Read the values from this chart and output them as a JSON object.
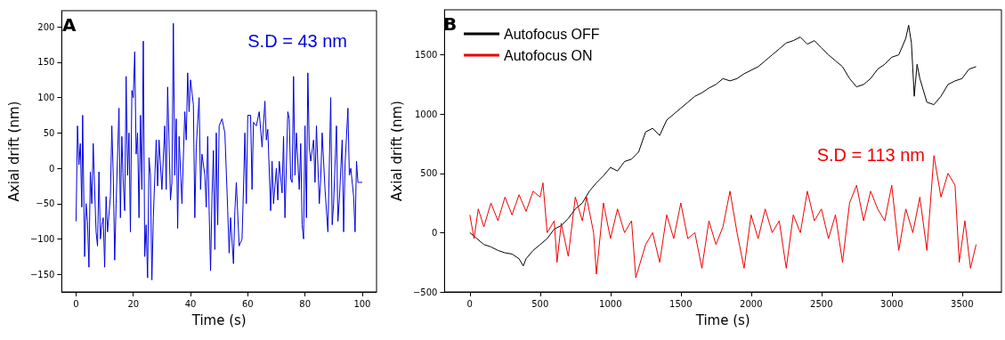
{
  "chart_data": [
    {
      "type": "line",
      "title": "A",
      "xlabel": "Time (s)",
      "ylabel": "Axial drift (nm)",
      "annotations": [
        "S.D = 43 nm"
      ],
      "xlim": [
        -5,
        105
      ],
      "xticks": [
        0,
        20,
        40,
        60,
        80,
        100
      ],
      "ylim": [
        -175,
        223
      ],
      "yticks": [
        -150,
        -100,
        -50,
        0,
        50,
        100,
        150,
        200
      ],
      "grid": false,
      "legend": false,
      "marker": "none",
      "line_style": "solid",
      "series": [
        {
          "color": "#0000dd",
          "x": [
            0,
            0.5,
            1,
            1.5,
            2,
            2.3,
            3,
            3.5,
            4,
            4.5,
            5,
            5.5,
            6,
            6.5,
            7,
            7.5,
            8,
            8.5,
            9,
            9.5,
            10,
            10.5,
            11,
            12,
            12.5,
            13,
            13.5,
            14,
            15,
            15.5,
            16,
            16.5,
            17,
            17.5,
            18,
            18.5,
            19,
            19.5,
            20,
            20.5,
            21,
            21.5,
            22,
            22.5,
            23,
            23.5,
            24,
            24.5,
            25,
            25.5,
            26,
            26.5,
            27,
            28,
            28.5,
            29,
            30,
            31,
            31.5,
            32,
            33,
            33.5,
            34,
            34.5,
            35,
            35.5,
            36,
            37,
            38,
            38.5,
            39,
            39.5,
            40,
            41,
            41.5,
            42,
            43,
            43.5,
            44,
            45,
            45.5,
            46,
            46.5,
            47,
            47.5,
            48,
            48.5,
            49,
            49.5,
            50,
            51,
            52,
            53,
            53.5,
            54,
            55,
            55.5,
            56,
            57,
            58,
            58.5,
            59,
            59.5,
            60,
            61,
            61.5,
            62,
            63,
            64,
            65,
            66,
            66.5,
            67,
            68,
            68.5,
            69,
            70,
            70.5,
            71,
            72,
            72.5,
            73,
            74,
            74.5,
            75,
            75.5,
            76,
            76.5,
            77,
            78,
            78.5,
            79,
            79.5,
            80,
            80.5,
            81,
            81.5,
            82,
            83,
            83.5,
            84,
            85,
            85.5,
            86,
            87,
            88,
            88.5,
            89,
            89.5,
            90,
            91,
            91.5,
            92,
            93,
            93.5,
            94,
            95,
            95.5,
            96,
            97,
            97.5,
            98,
            98.5,
            99,
            100
          ],
          "values": [
            -75,
            60,
            5,
            35,
            -55,
            75,
            -125,
            -50,
            -75,
            -140,
            -5,
            -50,
            35,
            -30,
            -90,
            -110,
            -5,
            -100,
            -80,
            -70,
            -140,
            -40,
            -90,
            -40,
            60,
            -10,
            -130,
            -50,
            85,
            -70,
            45,
            -20,
            -60,
            130,
            -10,
            50,
            -90,
            110,
            100,
            165,
            20,
            50,
            -70,
            75,
            -30,
            180,
            -125,
            -80,
            -155,
            15,
            -10,
            -158,
            -70,
            40,
            -25,
            40,
            -30,
            60,
            -30,
            115,
            -45,
            -20,
            205,
            -10,
            70,
            -85,
            45,
            -50,
            80,
            40,
            135,
            80,
            125,
            90,
            -70,
            30,
            100,
            -30,
            20,
            -10,
            -55,
            45,
            -60,
            -145,
            -40,
            25,
            -115,
            50,
            -80,
            60,
            70,
            50,
            -60,
            -120,
            -70,
            -135,
            -60,
            -20,
            -110,
            -100,
            -30,
            50,
            -50,
            75,
            75,
            -30,
            65,
            60,
            80,
            30,
            95,
            40,
            55,
            -60,
            10,
            -50,
            0,
            -45,
            10,
            -35,
            45,
            -70,
            80,
            70,
            -15,
            -20,
            130,
            -10,
            50,
            -30,
            35,
            -80,
            -100,
            60,
            -70,
            135,
            30,
            10,
            40,
            -20,
            60,
            -50,
            -15,
            50,
            -30,
            -90,
            5,
            100,
            -80,
            -50,
            60,
            -75,
            -45,
            40,
            -90,
            5,
            85,
            -10,
            0,
            -40,
            -90,
            10,
            -20,
            -20,
            -20
          ]
        }
      ]
    },
    {
      "type": "line",
      "title": "B",
      "xlabel": "Time (s)",
      "ylabel": "Axial drift (nm)",
      "annotations": [
        "S.D = 113 nm"
      ],
      "xlim": [
        -180,
        3780
      ],
      "xticks": [
        0,
        500,
        1000,
        1500,
        2000,
        2500,
        3000,
        3500
      ],
      "ylim": [
        -500,
        1880
      ],
      "yticks": [
        -500,
        0,
        500,
        1000,
        1500
      ],
      "grid": false,
      "legend": "top left",
      "marker": "none",
      "line_style": "solid",
      "series": [
        {
          "name": "Autofocus OFF",
          "color": "#000000",
          "x": [
            0,
            50,
            100,
            150,
            200,
            250,
            300,
            350,
            380,
            400,
            450,
            500,
            550,
            600,
            650,
            700,
            750,
            800,
            850,
            900,
            950,
            1000,
            1050,
            1100,
            1150,
            1200,
            1250,
            1300,
            1350,
            1400,
            1450,
            1500,
            1550,
            1600,
            1650,
            1700,
            1750,
            1800,
            1850,
            1900,
            1950,
            2000,
            2050,
            2100,
            2150,
            2200,
            2250,
            2300,
            2350,
            2400,
            2450,
            2500,
            2550,
            2600,
            2650,
            2700,
            2750,
            2800,
            2850,
            2900,
            2950,
            3000,
            3050,
            3100,
            3120,
            3140,
            3160,
            3180,
            3200,
            3250,
            3300,
            3350,
            3400,
            3450,
            3500,
            3550,
            3600
          ],
          "values": [
            0,
            -50,
            -100,
            -120,
            -150,
            -170,
            -180,
            -220,
            -280,
            -220,
            -150,
            -100,
            -50,
            30,
            60,
            120,
            200,
            250,
            350,
            420,
            480,
            550,
            520,
            600,
            620,
            680,
            850,
            880,
            820,
            950,
            1000,
            1050,
            1100,
            1150,
            1180,
            1220,
            1250,
            1300,
            1280,
            1300,
            1340,
            1370,
            1400,
            1450,
            1500,
            1550,
            1600,
            1620,
            1650,
            1590,
            1620,
            1560,
            1500,
            1450,
            1400,
            1300,
            1230,
            1250,
            1300,
            1380,
            1420,
            1480,
            1500,
            1640,
            1750,
            1600,
            1150,
            1420,
            1300,
            1100,
            1080,
            1150,
            1250,
            1280,
            1300,
            1380,
            1400
          ]
        },
        {
          "name": "Autofocus ON",
          "color": "#ee0000",
          "x": [
            0,
            30,
            60,
            100,
            150,
            200,
            250,
            300,
            350,
            400,
            450,
            500,
            520,
            550,
            600,
            620,
            650,
            700,
            750,
            800,
            830,
            880,
            900,
            950,
            1000,
            1050,
            1100,
            1150,
            1180,
            1250,
            1300,
            1350,
            1400,
            1450,
            1500,
            1550,
            1600,
            1650,
            1700,
            1750,
            1800,
            1850,
            1900,
            1950,
            2000,
            2050,
            2100,
            2150,
            2200,
            2250,
            2300,
            2350,
            2400,
            2450,
            2500,
            2550,
            2600,
            2650,
            2700,
            2750,
            2800,
            2850,
            2900,
            2950,
            3000,
            3050,
            3100,
            3150,
            3200,
            3250,
            3300,
            3350,
            3400,
            3450,
            3480,
            3520,
            3560,
            3600
          ],
          "values": [
            150,
            -50,
            200,
            50,
            250,
            100,
            300,
            150,
            320,
            180,
            350,
            300,
            420,
            0,
            100,
            -250,
            80,
            -200,
            300,
            100,
            300,
            0,
            -350,
            250,
            -50,
            200,
            0,
            100,
            -380,
            -100,
            0,
            -250,
            150,
            -50,
            250,
            -50,
            0,
            -300,
            100,
            -100,
            50,
            350,
            0,
            -300,
            150,
            -50,
            200,
            0,
            100,
            -300,
            150,
            0,
            350,
            100,
            200,
            -50,
            150,
            -250,
            250,
            400,
            100,
            350,
            200,
            100,
            400,
            -150,
            200,
            0,
            300,
            -150,
            650,
            300,
            500,
            400,
            -250,
            100,
            -300,
            -100
          ]
        }
      ]
    }
  ]
}
